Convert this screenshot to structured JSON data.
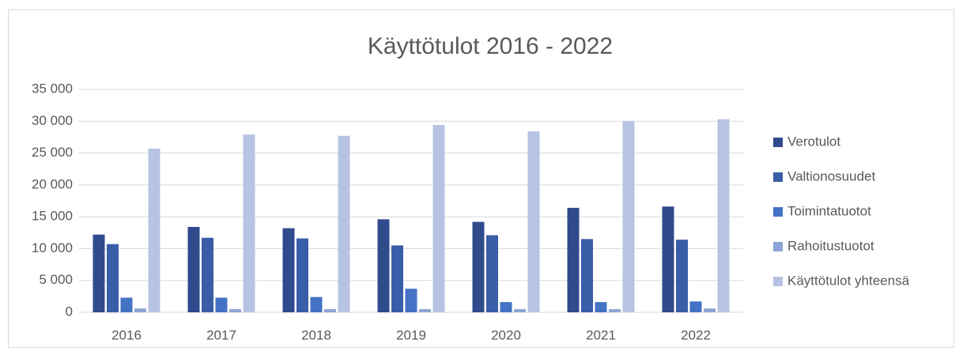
{
  "chart_data": {
    "type": "bar",
    "title": "Käyttötulot 2016 - 2022",
    "categories": [
      "2016",
      "2017",
      "2018",
      "2019",
      "2020",
      "2021",
      "2022"
    ],
    "series": [
      {
        "name": "Verotulot",
        "color": "#2f4b8c",
        "values": [
          12200,
          13400,
          13200,
          14600,
          14200,
          16400,
          16600
        ]
      },
      {
        "name": "Valtionosuudet",
        "color": "#3a5da8",
        "values": [
          10700,
          11700,
          11600,
          10500,
          12100,
          11500,
          11400
        ]
      },
      {
        "name": "Toimintatuotot",
        "color": "#4472c4",
        "values": [
          2300,
          2300,
          2400,
          3700,
          1600,
          1600,
          1700
        ]
      },
      {
        "name": "Rahoitustuotot",
        "color": "#8ea4d4",
        "values": [
          600,
          500,
          500,
          500,
          500,
          500,
          600
        ]
      },
      {
        "name": "Käyttötulot yhteensä",
        "color": "#b7c3e3",
        "values": [
          25700,
          27900,
          27700,
          29400,
          28400,
          30000,
          30300
        ]
      }
    ],
    "ylim": [
      0,
      35000
    ],
    "yticks": [
      0,
      {
        "value": 5000,
        "label": "5 000"
      },
      {
        "value": 10000,
        "label": "10 000"
      },
      {
        "value": 15000,
        "label": "15 000"
      },
      {
        "value": 20000,
        "label": "20 000"
      },
      {
        "value": 25000,
        "label": "25 000"
      },
      {
        "value": 30000,
        "label": "30 000"
      },
      {
        "value": 35000,
        "label": "35 000"
      }
    ],
    "grid": true,
    "legend": "right"
  }
}
